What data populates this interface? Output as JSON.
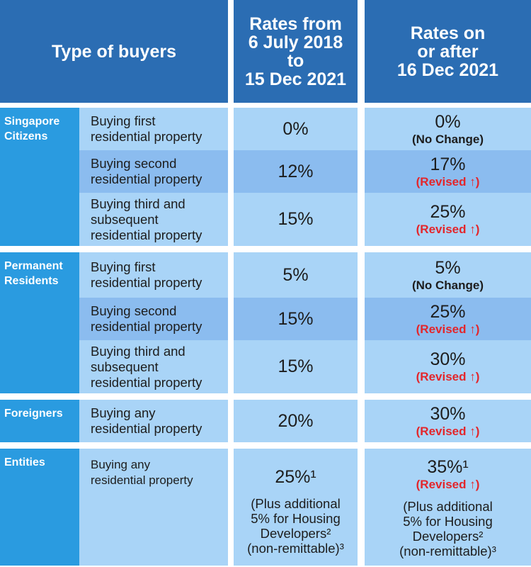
{
  "header": {
    "type_of_buyers": "Type of buyers",
    "old_rates": [
      "Rates from",
      "6 July 2018",
      "to",
      "15 Dec 2021"
    ],
    "new_rates": [
      "Rates on",
      "or after",
      "16 Dec 2021"
    ]
  },
  "groups": [
    {
      "name": [
        "Singapore",
        "Citizens"
      ],
      "rows": [
        {
          "buyer": [
            "Buying first",
            "residential property"
          ],
          "old_rate": "0%",
          "new_rate": "0%",
          "note": "(No Change)"
        },
        {
          "buyer": [
            "Buying second",
            "residential property"
          ],
          "old_rate": "12%",
          "new_rate": "17%",
          "note": "(Revised ↑)"
        },
        {
          "buyer": [
            "Buying third and",
            "subsequent",
            "residential property"
          ],
          "old_rate": "15%",
          "new_rate": "25%",
          "note": "(Revised ↑)"
        }
      ]
    },
    {
      "name": [
        "Permanent",
        "Residents"
      ],
      "rows": [
        {
          "buyer": [
            "Buying first",
            "residential property"
          ],
          "old_rate": "5%",
          "new_rate": "5%",
          "note": "(No Change)"
        },
        {
          "buyer": [
            "Buying second",
            "residential property"
          ],
          "old_rate": "15%",
          "new_rate": "25%",
          "note": "(Revised ↑)"
        },
        {
          "buyer": [
            "Buying third and",
            "subsequent",
            "residential property"
          ],
          "old_rate": "15%",
          "new_rate": "30%",
          "note": "(Revised ↑)"
        }
      ]
    },
    {
      "name": [
        "Foreigners"
      ],
      "rows": [
        {
          "buyer": [
            "Buying any",
            "residential property"
          ],
          "old_rate": "20%",
          "new_rate": "30%",
          "note": "(Revised ↑)"
        }
      ]
    },
    {
      "name": [
        "Entities"
      ],
      "rows": [
        {
          "buyer": [
            "Buying any",
            "residential property"
          ],
          "old_rate": "25%¹",
          "old_extra": [
            "(Plus additional",
            "5% for Housing",
            "Developers²",
            "(non-remittable)³"
          ],
          "new_rate": "35%¹",
          "note": "(Revised ↑)",
          "new_extra": [
            "(Plus additional",
            "5% for Housing",
            "Developers²",
            "(non-remittable)³"
          ]
        }
      ]
    }
  ]
}
